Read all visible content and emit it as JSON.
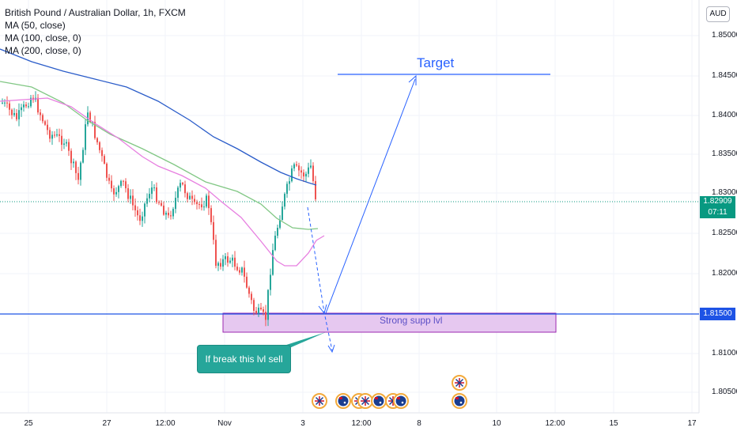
{
  "legend": {
    "symbol": "British Pound / Australian Dollar, 1h, FXCM",
    "ma50": "MA (50, close)",
    "ma100": "MA (100, close, 0)",
    "ma200": "MA (200, close, 0)"
  },
  "currency": "AUD",
  "price_axis": {
    "ticks": [
      "1.85000",
      "1.84500",
      "1.84000",
      "1.83500",
      "1.83000",
      "1.82500",
      "1.82000",
      "1.81000",
      "1.80500"
    ],
    "current_price": "1.82909",
    "countdown": "07:11",
    "support_price": "1.81500"
  },
  "time_axis": {
    "labels": [
      "25",
      "27",
      "12:00",
      "Nov",
      "3",
      "12:00",
      "8",
      "10",
      "12:00",
      "15",
      "17"
    ]
  },
  "annotations": {
    "target": "Target",
    "support_zone": "Strong supp lvl",
    "callout": "If break this lvl sell"
  },
  "colors": {
    "up": "#26a69a",
    "down": "#ef5350",
    "ma50": "#81c784",
    "ma100": "#e77fe0",
    "ma200": "#2a5cc9",
    "drawing": "#2962ff",
    "support_zone_fill": "#e6c8f0",
    "support_zone_border": "#9c27b0",
    "current_price": "#089981"
  },
  "event_icons": [
    "uk-flag-icon",
    "au-flag-icon",
    "uk-flag-icon",
    "uk-flag-icon",
    "au-flag-icon",
    "uk-flag-icon",
    "au-flag-icon",
    "uk-flag-icon",
    "au-flag-icon"
  ]
}
